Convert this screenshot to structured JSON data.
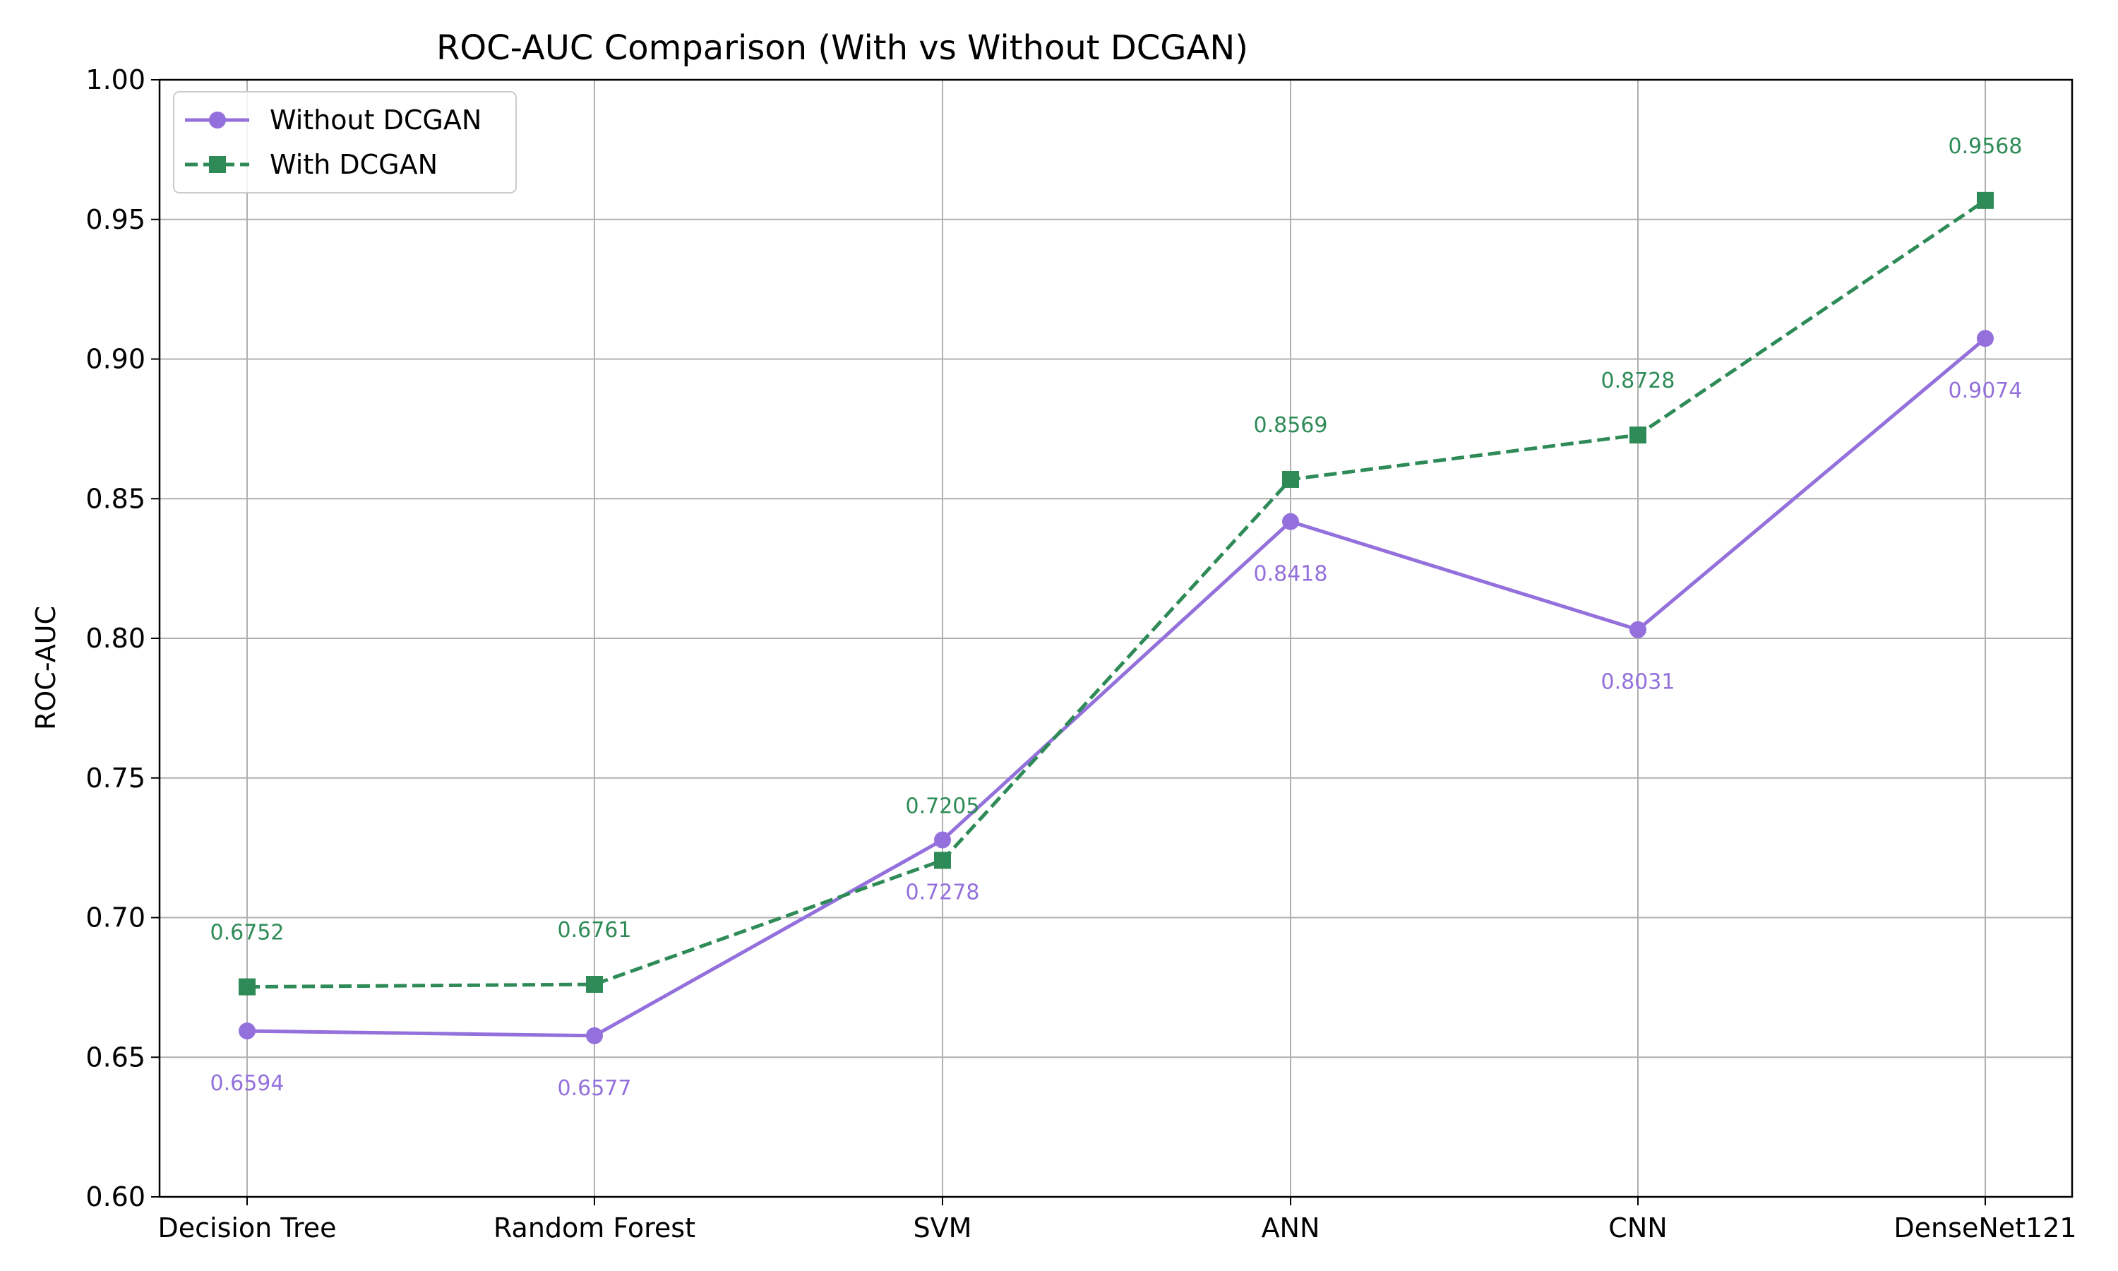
{
  "chart_data": {
    "type": "line",
    "title": "ROC-AUC Comparison (With vs Without DCGAN)",
    "xlabel": "",
    "ylabel": "ROC-AUC",
    "categories": [
      "Decision Tree",
      "Random Forest",
      "SVM",
      "ANN",
      "CNN",
      "DenseNet121"
    ],
    "ylim": [
      0.6,
      1.0
    ],
    "yticks": [
      "0.60",
      "0.65",
      "0.70",
      "0.75",
      "0.80",
      "0.85",
      "0.90",
      "0.95",
      "1.00"
    ],
    "grid": true,
    "legend_position": "top-left",
    "series": [
      {
        "name": "Without DCGAN",
        "values": [
          0.6594,
          0.6577,
          0.7278,
          0.8418,
          0.8031,
          0.9074
        ],
        "labels": [
          "0.6594",
          "0.6577",
          "0.7278",
          "0.8418",
          "0.8031",
          "0.9074"
        ],
        "color": "#9370DB",
        "line_style": "solid",
        "marker": "circle",
        "label_placement": "below"
      },
      {
        "name": "With DCGAN",
        "values": [
          0.6752,
          0.6761,
          0.7205,
          0.8569,
          0.8728,
          0.9568
        ],
        "labels": [
          "0.6752",
          "0.6761",
          "0.7205",
          "0.8569",
          "0.8728",
          "0.9568"
        ],
        "color": "#2E8B57",
        "line_style": "dashed",
        "marker": "square",
        "label_placement": "above"
      }
    ]
  }
}
